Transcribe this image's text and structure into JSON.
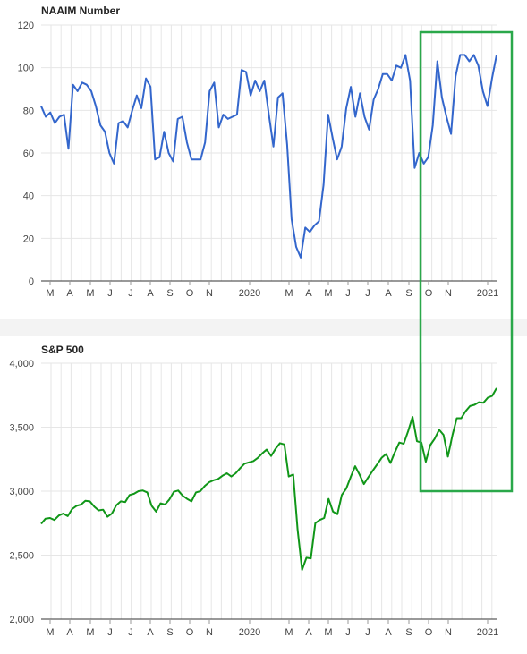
{
  "chart_data": [
    {
      "type": "line",
      "title": "NAAIM Number",
      "ylim": [
        0,
        120
      ],
      "y_ticks": [
        "0",
        "20",
        "40",
        "60",
        "80",
        "100",
        "120"
      ],
      "x_ticks": [
        "M",
        "A",
        "M",
        "J",
        "J",
        "A",
        "S",
        "O",
        "N",
        "2020",
        "M",
        "A",
        "M",
        "J",
        "J",
        "A",
        "S",
        "O",
        "N",
        "2021"
      ],
      "grid": true,
      "color": "#3366cc",
      "series": [
        {
          "values": [
            82,
            77,
            79,
            74,
            77,
            78,
            62,
            92,
            89,
            93,
            92,
            89,
            82,
            73,
            70,
            60,
            55,
            74,
            75,
            72,
            80,
            87,
            81,
            95,
            91,
            57,
            58,
            70,
            60,
            56,
            76,
            77,
            65,
            57,
            57,
            57,
            65,
            89,
            93,
            72,
            78,
            76,
            77,
            78,
            99,
            98,
            87,
            94,
            89,
            94,
            78,
            63,
            86,
            88,
            64,
            29,
            16,
            11,
            25,
            23,
            26,
            28,
            45,
            78,
            67,
            57,
            63,
            81,
            91,
            77,
            88,
            77,
            71,
            85,
            90,
            97,
            97,
            94,
            101,
            100,
            106,
            94,
            53,
            60,
            55,
            58,
            73,
            103,
            86,
            77,
            69,
            96,
            106,
            106,
            103,
            106,
            101,
            89,
            82,
            95,
            106
          ]
        }
      ]
    },
    {
      "type": "line",
      "title": "S&P 500",
      "ylim": [
        2000,
        4000
      ],
      "y_ticks": [
        "2,000",
        "2,500",
        "3,000",
        "3,500",
        "4,000"
      ],
      "x_ticks": [
        "M",
        "A",
        "M",
        "J",
        "J",
        "A",
        "S",
        "O",
        "N",
        "2020",
        "M",
        "A",
        "M",
        "J",
        "J",
        "A",
        "S",
        "O",
        "N",
        "2021"
      ],
      "grid": true,
      "color": "#109618",
      "series": [
        {
          "values": [
            2745,
            2785,
            2790,
            2775,
            2810,
            2825,
            2805,
            2860,
            2885,
            2895,
            2925,
            2920,
            2880,
            2850,
            2855,
            2800,
            2825,
            2890,
            2920,
            2915,
            2970,
            2980,
            3000,
            3005,
            2990,
            2885,
            2840,
            2905,
            2895,
            2935,
            2995,
            3005,
            2965,
            2940,
            2920,
            2990,
            3000,
            3040,
            3070,
            3085,
            3095,
            3120,
            3140,
            3115,
            3140,
            3180,
            3215,
            3225,
            3235,
            3260,
            3295,
            3325,
            3275,
            3330,
            3375,
            3365,
            3115,
            3130,
            2700,
            2385,
            2480,
            2475,
            2750,
            2775,
            2790,
            2940,
            2840,
            2820,
            2970,
            3020,
            3110,
            3195,
            3130,
            3055,
            3110,
            3160,
            3210,
            3260,
            3290,
            3220,
            3305,
            3380,
            3370,
            3470,
            3580,
            3390,
            3380,
            3230,
            3360,
            3410,
            3480,
            3440,
            3270,
            3435,
            3570,
            3570,
            3625,
            3665,
            3675,
            3695,
            3690,
            3730,
            3745,
            3805
          ]
        }
      ]
    }
  ],
  "highlight": {
    "color": "#2aa84a"
  }
}
